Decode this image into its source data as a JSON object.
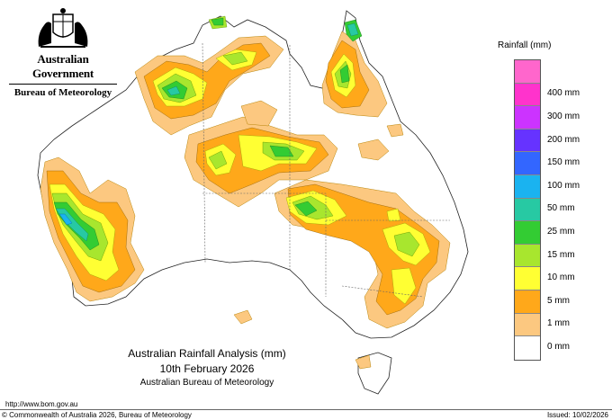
{
  "logo": {
    "government": "Australian Government",
    "bureau": "Bureau of Meteorology"
  },
  "legend": {
    "title": "Rainfall (mm)",
    "items": [
      {
        "label": "",
        "color": "#ff66cc"
      },
      {
        "label": "400 mm",
        "color": "#ff33cc"
      },
      {
        "label": "300 mm",
        "color": "#cc33ff"
      },
      {
        "label": "200 mm",
        "color": "#6633ff"
      },
      {
        "label": "150 mm",
        "color": "#3366ff"
      },
      {
        "label": "100 mm",
        "color": "#1ab3f0"
      },
      {
        "label": "50 mm",
        "color": "#27c9a3"
      },
      {
        "label": "25 mm",
        "color": "#33cc33"
      },
      {
        "label": "15 mm",
        "color": "#a8e62e"
      },
      {
        "label": "10 mm",
        "color": "#ffff33"
      },
      {
        "label": "5 mm",
        "color": "#ffa81a"
      },
      {
        "label": "1 mm",
        "color": "#fcc880"
      },
      {
        "label": "0 mm",
        "color": "#ffffff"
      }
    ]
  },
  "title": {
    "line1": "Australian Rainfall Analysis (mm)",
    "line2": "10th February 2026",
    "line3": "Australian Bureau of Meteorology"
  },
  "footer": {
    "url": "http://www.bom.gov.au",
    "copyright": "© Commonwealth of Australia 2026, Bureau of Meteorology",
    "issued": "Issued: 10/02/2026"
  }
}
